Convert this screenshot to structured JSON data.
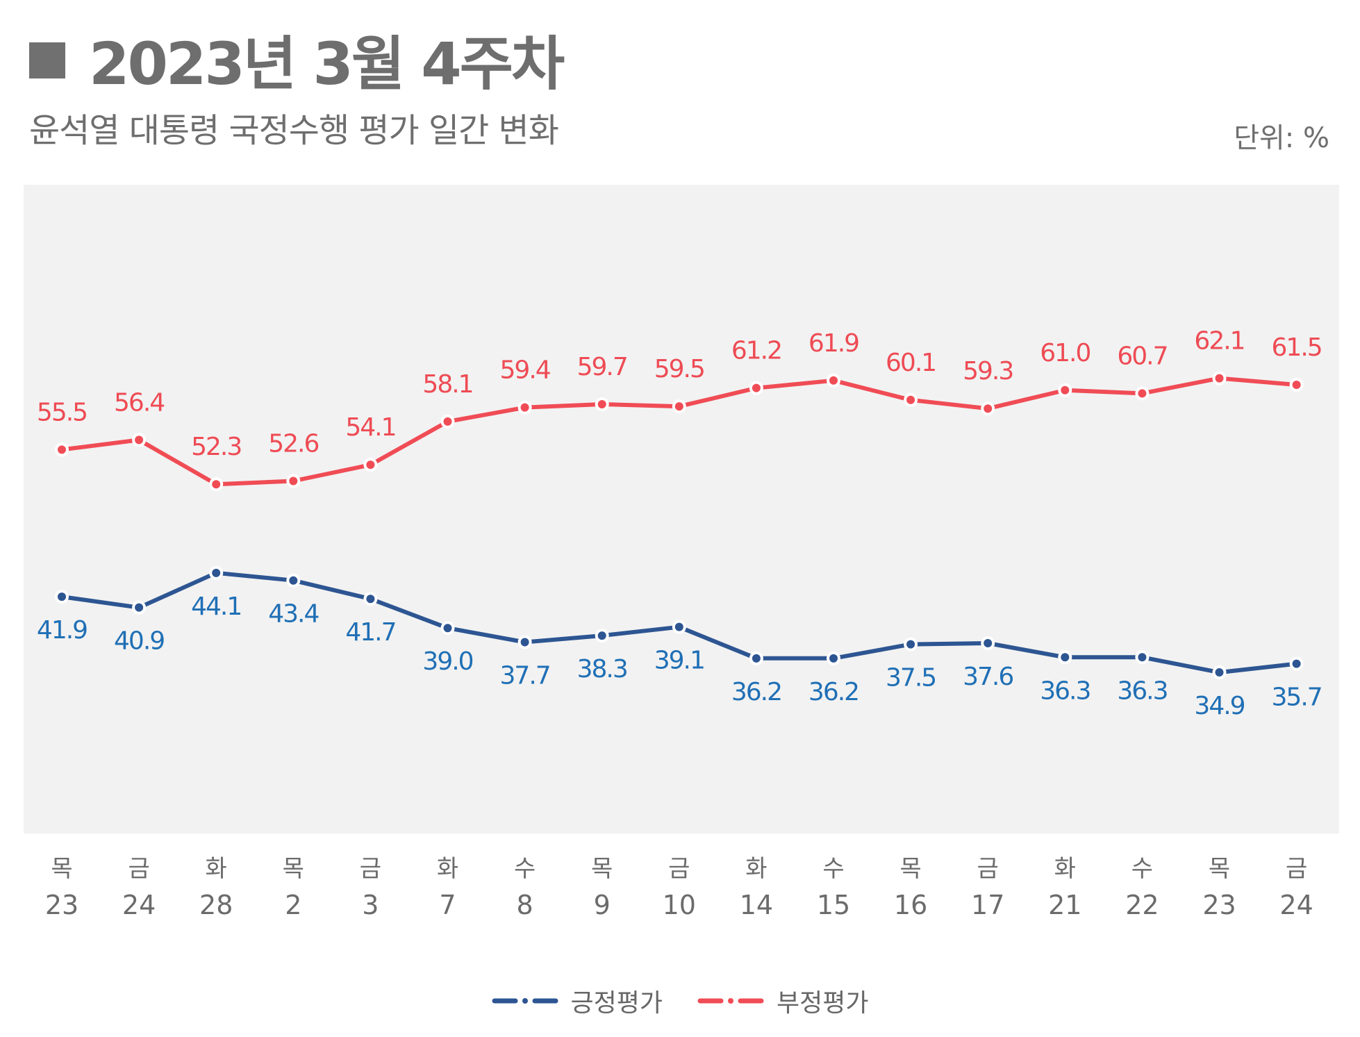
{
  "header": {
    "title": "2023년 3월 4주차",
    "subtitle": "윤석열 대통령 국정수행 평가 일간 변화",
    "unit": "단위: %"
  },
  "colors": {
    "positive": "#2d5592",
    "negative": "#f04c55",
    "plot_bg": "#f2f2f2",
    "tick_text": "#6b6b6b"
  },
  "chart_data": {
    "type": "line",
    "title": "윤석열 대통령 국정수행 평가 일간 변화",
    "xlabel": "",
    "ylabel": "",
    "unit": "%",
    "grid": false,
    "legend_position": "bottom-center",
    "categories": [
      {
        "day": "목",
        "date": "23"
      },
      {
        "day": "금",
        "date": "24"
      },
      {
        "day": "화",
        "date": "28"
      },
      {
        "day": "목",
        "date": "2"
      },
      {
        "day": "금",
        "date": "3"
      },
      {
        "day": "화",
        "date": "7"
      },
      {
        "day": "수",
        "date": "8"
      },
      {
        "day": "목",
        "date": "9"
      },
      {
        "day": "금",
        "date": "10"
      },
      {
        "day": "화",
        "date": "14"
      },
      {
        "day": "수",
        "date": "15"
      },
      {
        "day": "목",
        "date": "16"
      },
      {
        "day": "금",
        "date": "17"
      },
      {
        "day": "화",
        "date": "21"
      },
      {
        "day": "수",
        "date": "22"
      },
      {
        "day": "목",
        "date": "23"
      },
      {
        "day": "금",
        "date": "24"
      }
    ],
    "ylim": [
      20,
      80
    ],
    "series": [
      {
        "name": "긍정평가",
        "color": "#2d5592",
        "label_color": "#1f6fb5",
        "label_position": "below",
        "values": [
          41.9,
          40.9,
          44.1,
          43.4,
          41.7,
          39.0,
          37.7,
          38.3,
          39.1,
          36.2,
          36.2,
          37.5,
          37.6,
          36.3,
          36.3,
          34.9,
          35.7
        ],
        "labels": [
          "41.9",
          "40.9",
          "44.1",
          "43.4",
          "41.7",
          "39.0",
          "37.7",
          "38.3",
          "39.1",
          "36.2",
          "36.2",
          "37.5",
          "37.6",
          "36.3",
          "36.3",
          "34.9",
          "35.7"
        ]
      },
      {
        "name": "부정평가",
        "color": "#f04c55",
        "label_color": "#ee4b54",
        "label_position": "above",
        "values": [
          55.5,
          56.4,
          52.3,
          52.6,
          54.1,
          58.1,
          59.4,
          59.7,
          59.5,
          61.2,
          61.9,
          60.1,
          59.3,
          61.0,
          60.7,
          62.1,
          61.5
        ],
        "labels": [
          "55.5",
          "56.4",
          "52.3",
          "52.6",
          "54.1",
          "58.1",
          "59.4",
          "59.7",
          "59.5",
          "61.2",
          "61.9",
          "60.1",
          "59.3",
          "61.0",
          "60.7",
          "62.1",
          "61.5"
        ]
      }
    ]
  },
  "legend": {
    "items": [
      {
        "label": "긍정평가",
        "color": "#2d5592"
      },
      {
        "label": "부정평가",
        "color": "#f04c55"
      }
    ]
  }
}
